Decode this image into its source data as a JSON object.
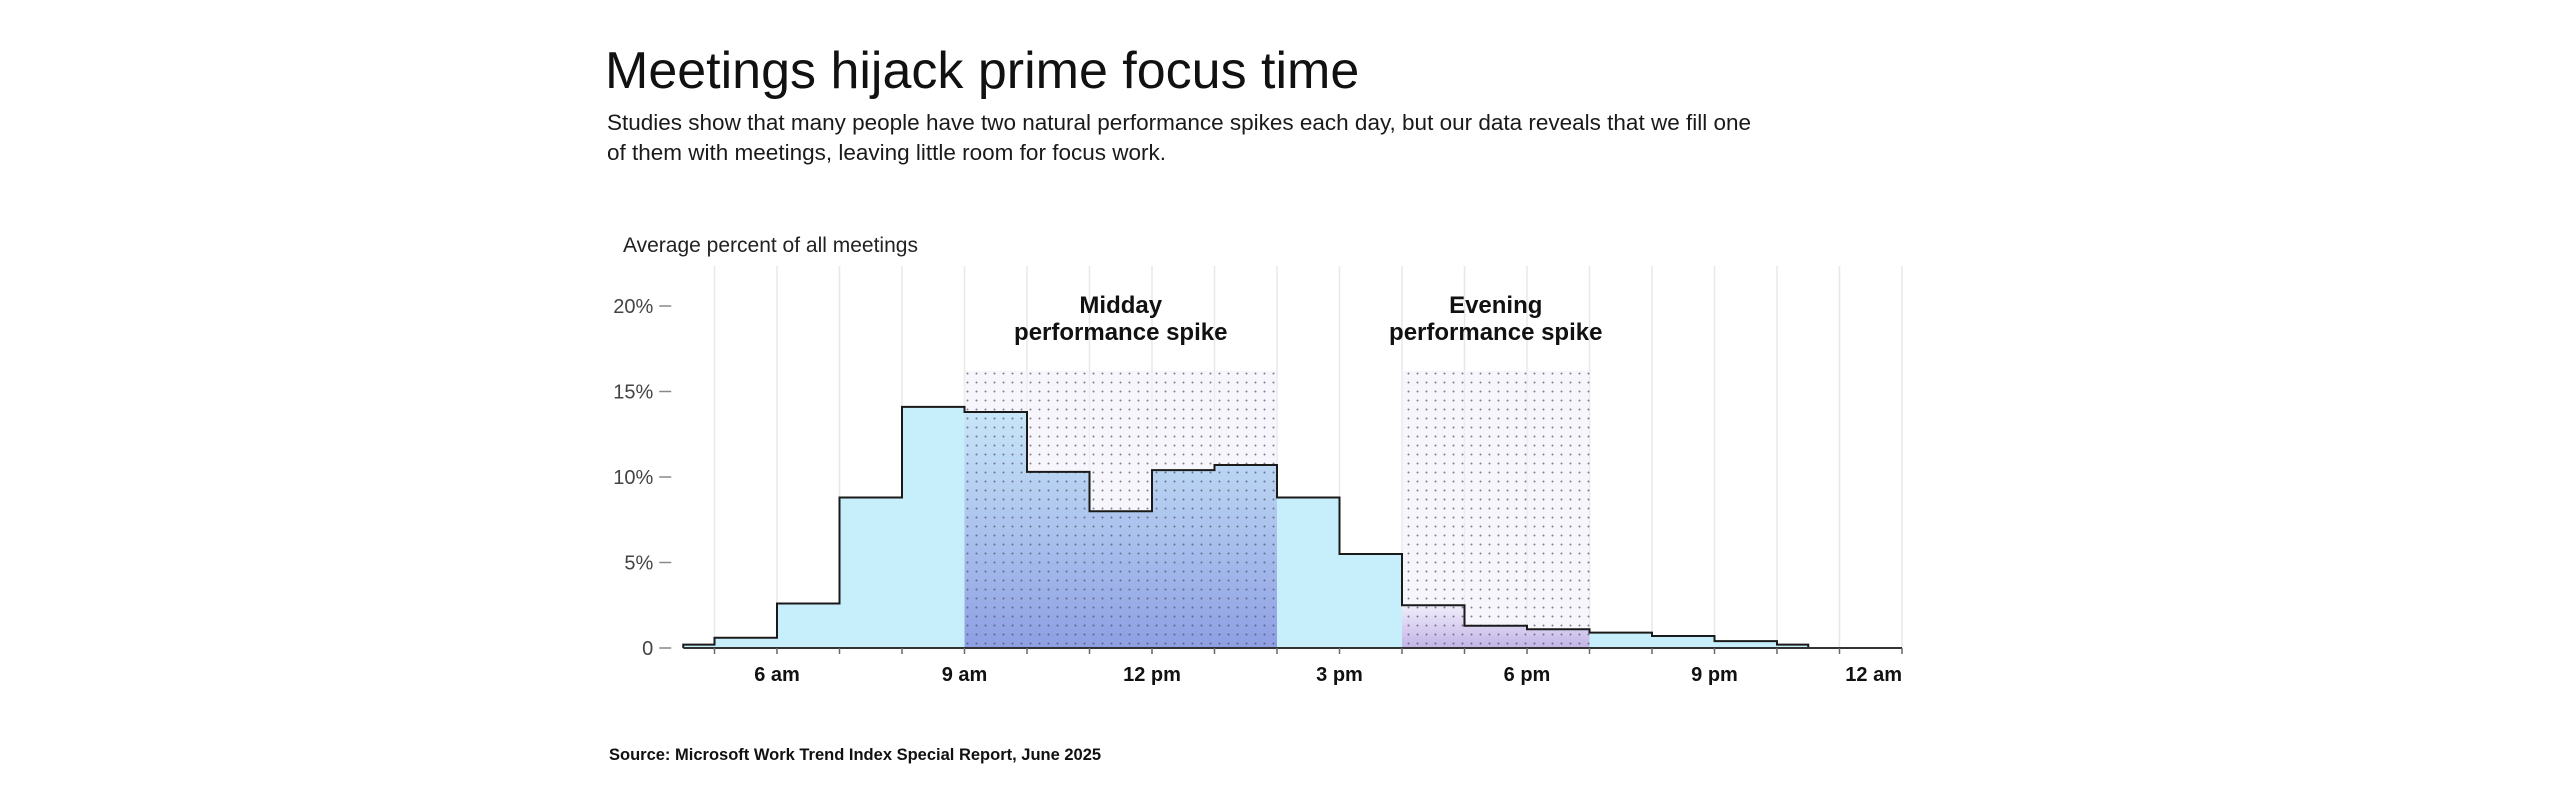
{
  "title": "Meetings hijack prime focus time",
  "subtitle_lines": [
    "Studies show that many people have two natural performance spikes each day, but our data reveals that we fill one",
    "of them with meetings, leaving little room for focus work."
  ],
  "source": "Source: Microsoft Work Trend Index Special Report, June 2025",
  "colors": {
    "bar_fill": "#c6eefb",
    "bar_stroke": "#1a1a1a",
    "midday_gradient_top": "#c8e6f8",
    "midday_gradient_bottom": "#8e9fe3",
    "evening_gradient_top": "#f1edfb",
    "evening_gradient_bottom": "#c2b4e6",
    "dots": "#4a4a5a",
    "grid": "#e8e8e8"
  },
  "chart_data": {
    "type": "bar",
    "ylabel": "Average percent of all meetings",
    "y_unit": "%",
    "ylim": [
      0,
      20
    ],
    "yticks": [
      {
        "value": 0,
        "label": "0"
      },
      {
        "value": 5,
        "label": "5%"
      },
      {
        "value": 10,
        "label": "10%"
      },
      {
        "value": 15,
        "label": "15%"
      },
      {
        "value": 20,
        "label": "20%"
      }
    ],
    "xlim": [
      4,
      24
    ],
    "xticks": [
      {
        "hour": 6,
        "label": "6 am"
      },
      {
        "hour": 9,
        "label": "9 am"
      },
      {
        "hour": 12,
        "label": "12 pm"
      },
      {
        "hour": 15,
        "label": "3 pm"
      },
      {
        "hour": 18,
        "label": "6 pm"
      },
      {
        "hour": 21,
        "label": "9 pm"
      },
      {
        "hour": 24,
        "label": "12 am"
      }
    ],
    "bins": [
      {
        "start": 4.5,
        "end": 5,
        "value": 0.2
      },
      {
        "start": 5,
        "end": 6,
        "value": 0.6
      },
      {
        "start": 6,
        "end": 7,
        "value": 2.6
      },
      {
        "start": 7,
        "end": 8,
        "value": 8.8
      },
      {
        "start": 8,
        "end": 9,
        "value": 14.1
      },
      {
        "start": 9,
        "end": 10,
        "value": 13.8
      },
      {
        "start": 10,
        "end": 11,
        "value": 10.3
      },
      {
        "start": 11,
        "end": 12,
        "value": 8.0
      },
      {
        "start": 12,
        "end": 13,
        "value": 10.4
      },
      {
        "start": 13,
        "end": 14,
        "value": 10.7
      },
      {
        "start": 14,
        "end": 15,
        "value": 8.8
      },
      {
        "start": 15,
        "end": 16,
        "value": 5.5
      },
      {
        "start": 16,
        "end": 17,
        "value": 2.5
      },
      {
        "start": 17,
        "end": 18,
        "value": 1.3
      },
      {
        "start": 18,
        "end": 19,
        "value": 1.1
      },
      {
        "start": 19,
        "end": 20,
        "value": 0.9
      },
      {
        "start": 20,
        "end": 21,
        "value": 0.7
      },
      {
        "start": 21,
        "end": 22,
        "value": 0.4
      },
      {
        "start": 22,
        "end": 22.5,
        "value": 0.2
      }
    ],
    "spikes": [
      {
        "name_lines": [
          "Midday",
          "performance spike"
        ],
        "start": 9,
        "end": 14,
        "top": 16.2,
        "gradient": "midday"
      },
      {
        "name_lines": [
          "Evening",
          "performance spike"
        ],
        "start": 16,
        "end": 19,
        "top": 16.2,
        "gradient": "evening"
      }
    ],
    "grid": true
  }
}
